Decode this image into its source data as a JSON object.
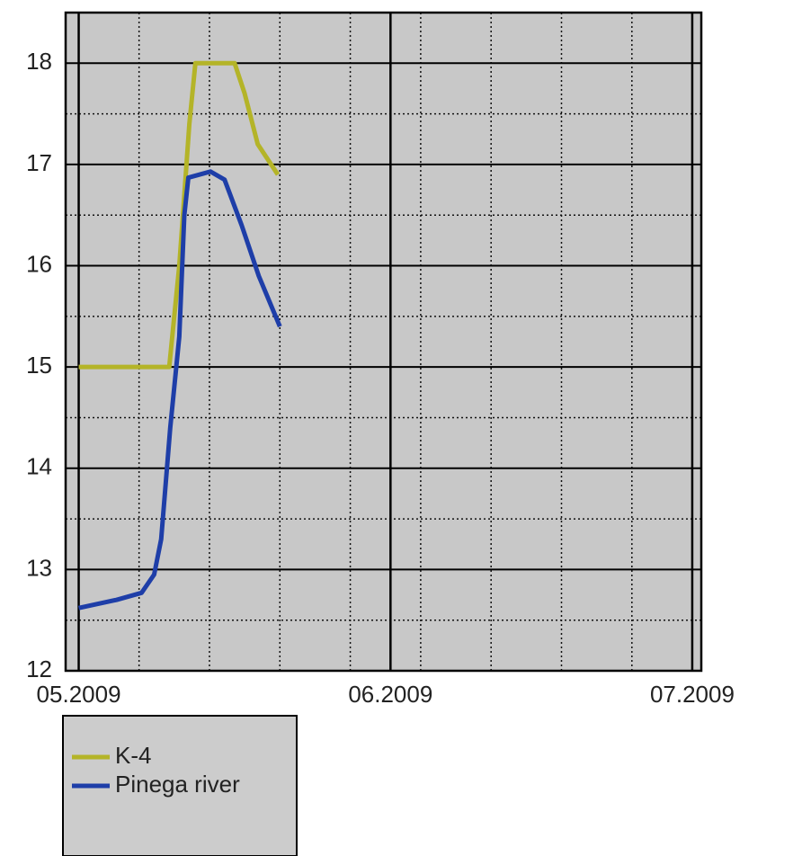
{
  "chart_data": {
    "type": "line",
    "xlim": [
      -1.3,
      61.9
    ],
    "xticks": [
      {
        "value": 0,
        "label": "05.2009"
      },
      {
        "value": 31,
        "label": "06.2009"
      },
      {
        "value": 61,
        "label": "07.2009"
      }
    ],
    "xminor": [
      6,
      13,
      20,
      27,
      34,
      41,
      48,
      55
    ],
    "ylim": [
      12,
      18.5
    ],
    "yticks": [
      12,
      13,
      14,
      15,
      16,
      17,
      18
    ],
    "yminor": [
      12.5,
      13.5,
      14.5,
      15.5,
      16.5,
      17.5
    ],
    "grid": true,
    "legend": "bottom-left",
    "series": [
      {
        "name": "K-4",
        "color": "#b4b428",
        "x": [
          0,
          9,
          10,
          11,
          11.6,
          15.5,
          16.5,
          17.8,
          19.8
        ],
        "values": [
          15,
          15,
          16,
          17.4,
          18,
          18,
          17.7,
          17.2,
          16.9
        ]
      },
      {
        "name": "Pinega river",
        "color": "#1e3ea8",
        "x": [
          0,
          3.75,
          6.25,
          7.5,
          8.2,
          9.1,
          10,
          10.5,
          10.9,
          13.1,
          14.5,
          16.2,
          17.9,
          20
        ],
        "values": [
          12.62,
          12.7,
          12.77,
          12.95,
          13.3,
          14.4,
          15.3,
          16.5,
          16.87,
          16.93,
          16.85,
          16.4,
          15.9,
          15.4
        ]
      }
    ]
  }
}
